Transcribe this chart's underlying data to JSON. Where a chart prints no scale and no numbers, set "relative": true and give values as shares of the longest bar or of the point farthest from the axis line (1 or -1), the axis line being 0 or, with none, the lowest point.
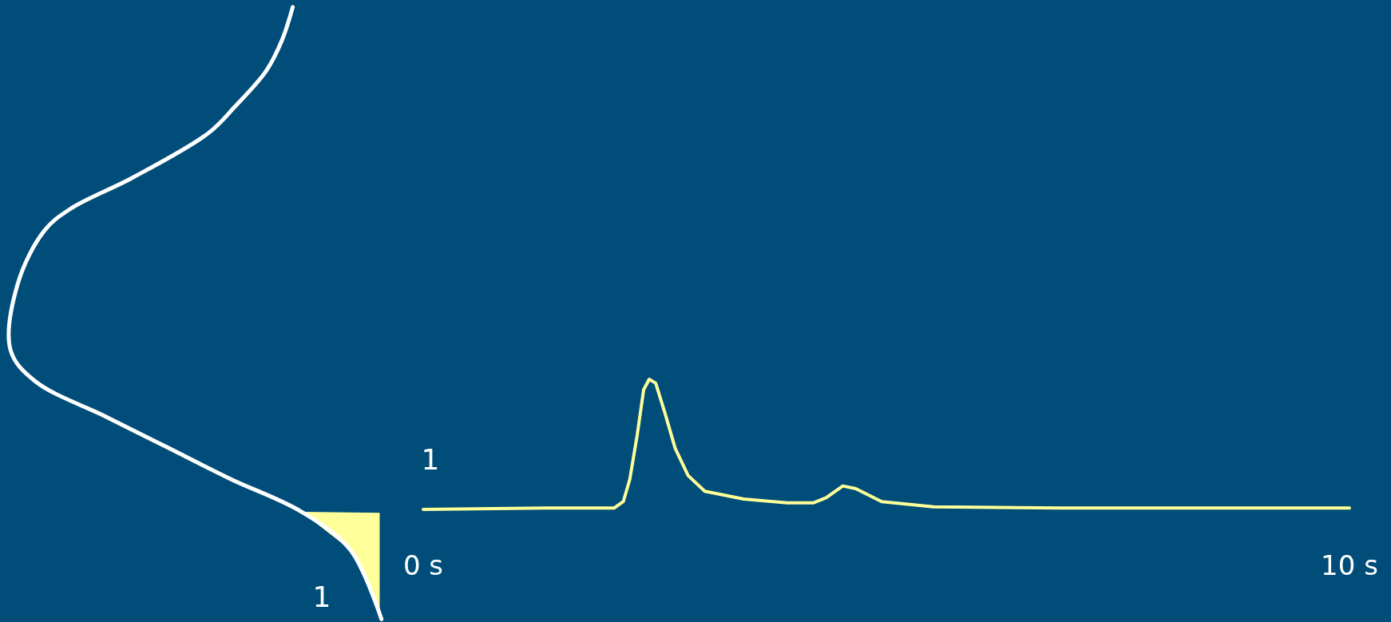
{
  "chart_data": {
    "type": "line",
    "relative": true,
    "xlim": [
      0,
      10
    ],
    "xticks": [
      {
        "value": 0,
        "label": "0 s"
      },
      {
        "value": 10,
        "label": "10 s"
      }
    ],
    "annotations": [
      "1",
      "1"
    ],
    "series": [
      {
        "color": "#ffff99",
        "x": [
          0,
          1.32,
          2.06,
          2.16,
          2.23,
          2.31,
          2.38,
          2.44,
          2.51,
          2.61,
          2.72,
          2.86,
          3.04,
          3.46,
          3.93,
          4.21,
          4.35,
          4.53,
          4.67,
          4.95,
          5.51,
          6.91,
          10
        ],
        "values": [
          0,
          0.01,
          0.01,
          0.06,
          0.23,
          0.57,
          0.92,
          1,
          0.97,
          0.74,
          0.47,
          0.26,
          0.14,
          0.08,
          0.05,
          0.05,
          0.09,
          0.18,
          0.16,
          0.06,
          0.02,
          0.01,
          0.01
        ]
      }
    ]
  }
}
